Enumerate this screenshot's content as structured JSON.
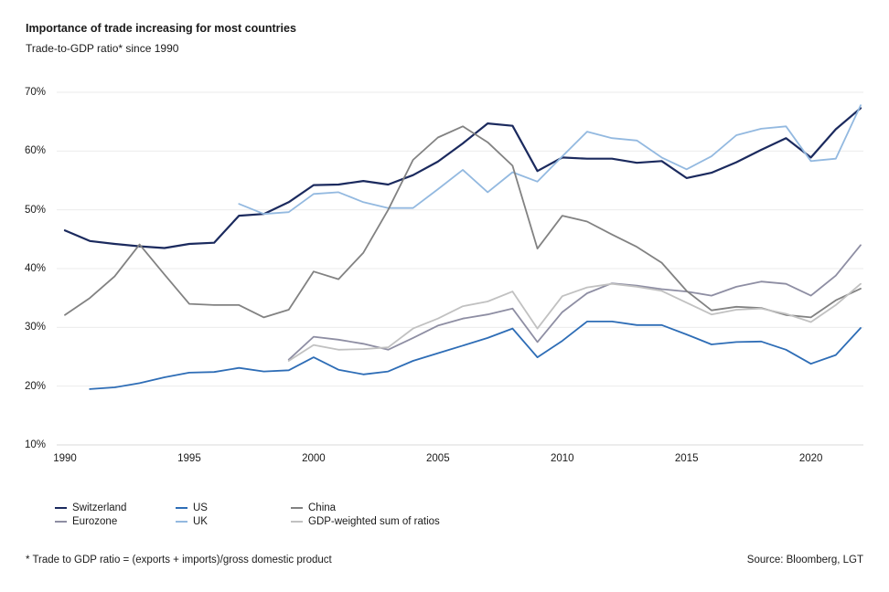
{
  "header": {
    "title": "Importance of trade increasing for most countries",
    "subtitle": "Trade-to-GDP ratio* since 1990"
  },
  "footer": {
    "note": "* Trade to GDP ratio = (exports + imports)/gross domestic product",
    "source": "Source: Bloomberg, LGT"
  },
  "colors": {
    "background": "#ffffff",
    "text": "#1a1a1a",
    "gridline": "#ebebeb",
    "axis_line": "#d8d8d8"
  },
  "chart_data": {
    "type": "line",
    "title": "Importance of trade increasing for most countries",
    "subtitle": "Trade-to-GDP ratio* since 1990",
    "xlabel": "",
    "ylabel": "",
    "x_range": [
      1990,
      2022
    ],
    "y_range": [
      10,
      70
    ],
    "grid": true,
    "legend_position": "bottom",
    "x_ticks": [
      "1990",
      "1995",
      "2000",
      "2005",
      "2010",
      "2015",
      "2020"
    ],
    "y_ticks": [
      "70%",
      "60%",
      "50%",
      "40%",
      "30%",
      "20%",
      "10%"
    ],
    "series": [
      {
        "name": "Switzerland",
        "color": "#1b2a5e",
        "line_width": 2.2,
        "start_year": 1990,
        "values": [
          46.5,
          44.7,
          44.2,
          43.8,
          43.5,
          44.2,
          44.4,
          49.0,
          49.3,
          51.3,
          54.2,
          54.3,
          54.9,
          54.3,
          55.9,
          58.2,
          61.3,
          64.7,
          64.3,
          56.6,
          58.9,
          58.7,
          58.7,
          58.0,
          58.3,
          55.4,
          56.3,
          58.1,
          60.2,
          62.2,
          58.9,
          63.7,
          67.3
        ]
      },
      {
        "name": "Eurozone",
        "color": "#8e8ea3",
        "line_width": 1.8,
        "start_year": 1999,
        "values": [
          24.5,
          28.4,
          27.9,
          27.2,
          26.2,
          28.2,
          30.3,
          31.5,
          32.2,
          33.2,
          27.5,
          32.6,
          35.8,
          37.5,
          37.1,
          36.5,
          36.1,
          35.4,
          36.9,
          37.8,
          37.4,
          35.4,
          38.8,
          44.0
        ]
      },
      {
        "name": "US",
        "color": "#2e6db6",
        "line_width": 1.8,
        "start_year": 1991,
        "values": [
          19.5,
          19.8,
          20.5,
          21.5,
          22.3,
          22.4,
          23.1,
          22.5,
          22.7,
          24.9,
          22.8,
          22.0,
          22.5,
          24.3,
          25.6,
          26.9,
          28.2,
          29.8,
          24.9,
          27.7,
          31.0,
          31.0,
          30.4,
          30.4,
          28.8,
          27.1,
          27.5,
          27.6,
          26.2,
          23.8,
          25.3,
          29.9
        ]
      },
      {
        "name": "UK",
        "color": "#93b9e0",
        "line_width": 1.8,
        "start_year": 1997,
        "values": [
          51.0,
          49.3,
          49.6,
          52.7,
          53.0,
          51.3,
          50.3,
          50.3,
          53.5,
          56.8,
          53.0,
          56.4,
          54.8,
          59.1,
          63.3,
          62.2,
          61.8,
          58.9,
          56.9,
          59.1,
          62.7,
          63.8,
          64.2,
          58.3,
          58.7,
          67.8
        ]
      },
      {
        "name": "China",
        "color": "#828282",
        "line_width": 1.8,
        "start_year": 1990,
        "values": [
          32.1,
          35.0,
          38.7,
          44.1,
          39.0,
          34.0,
          33.8,
          33.8,
          31.7,
          33.0,
          39.5,
          38.2,
          42.7,
          50.0,
          58.5,
          62.3,
          64.2,
          61.5,
          57.5,
          43.4,
          49.0,
          48.0,
          45.8,
          43.7,
          41.0,
          36.2,
          32.9,
          33.5,
          33.3,
          32.1,
          31.7,
          34.6,
          36.6
        ]
      },
      {
        "name": "GDP-weighted sum of ratios",
        "color": "#c1c1c1",
        "line_width": 1.8,
        "start_year": 1999,
        "values": [
          24.3,
          27.0,
          26.2,
          26.3,
          26.6,
          29.8,
          31.5,
          33.6,
          34.4,
          36.1,
          29.8,
          35.3,
          36.8,
          37.4,
          36.9,
          36.2,
          34.2,
          32.2,
          33.0,
          33.2,
          32.3,
          30.9,
          33.8,
          37.4
        ]
      }
    ]
  }
}
